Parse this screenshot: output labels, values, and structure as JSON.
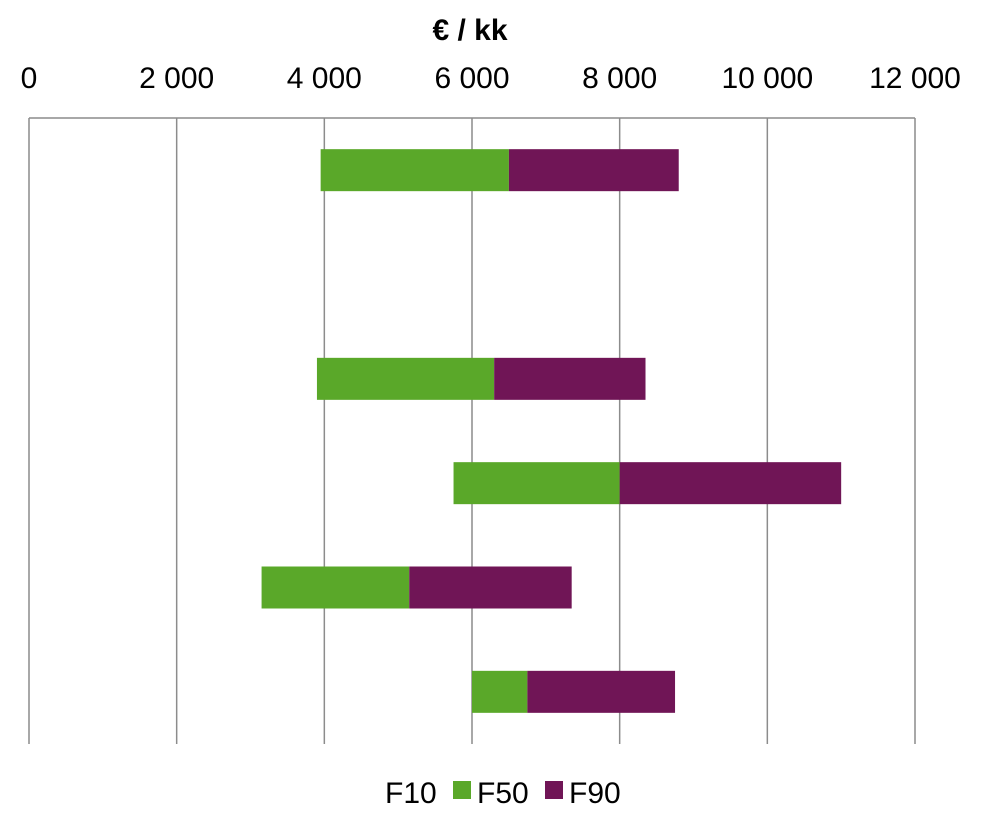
{
  "chart_data": {
    "type": "bar",
    "orientation": "horizontal",
    "stacked": true,
    "xlabel": "€ / kk",
    "axis_position": "top",
    "xlim": [
      0,
      12000
    ],
    "tick_values": [
      0,
      2000,
      4000,
      6000,
      8000,
      10000,
      12000
    ],
    "tick_labels": [
      "0",
      "2 000",
      "4 000",
      "6 000",
      "8 000",
      "10 000",
      "12 000"
    ],
    "grid": true,
    "legend_position": "bottom",
    "categories": [
      "",
      "",
      "",
      "",
      "",
      ""
    ],
    "series": [
      {
        "name": "F10",
        "color": "#ffffff",
        "visible": false,
        "values": [
          3950,
          null,
          3900,
          5750,
          3150,
          6000
        ]
      },
      {
        "name": "F50",
        "color": "#5aa829",
        "values": [
          2550,
          null,
          2400,
          2250,
          2000,
          750
        ]
      },
      {
        "name": "F90",
        "color": "#701556",
        "values": [
          2300,
          null,
          2050,
          3000,
          2200,
          2000
        ]
      }
    ]
  }
}
